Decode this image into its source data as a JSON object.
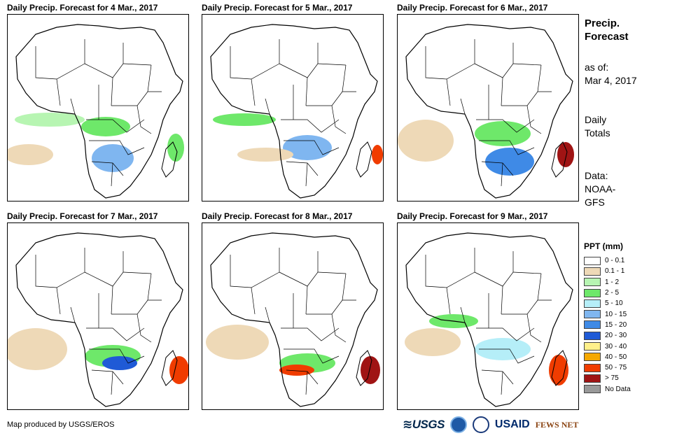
{
  "panels": [
    {
      "title": "Daily Precip. Forecast for 4 Mar., 2017"
    },
    {
      "title": "Daily Precip. Forecast for 5 Mar., 2017"
    },
    {
      "title": "Daily Precip. Forecast for 6 Mar., 2017"
    },
    {
      "title": "Daily Precip. Forecast for 7 Mar., 2017"
    },
    {
      "title": "Daily Precip. Forecast for 8 Mar., 2017"
    },
    {
      "title": "Daily Precip. Forecast for 9 Mar., 2017"
    }
  ],
  "info": {
    "title_line1": "Precip.",
    "title_line2": "Forecast",
    "asof_label": "as of:",
    "asof_date": "Mar 4, 2017",
    "totals_line1": "Daily",
    "totals_line2": "Totals",
    "data_line1": "Data:",
    "data_line2": "NOAA-",
    "data_line3": "GFS"
  },
  "legend": {
    "title": "PPT (mm)",
    "items": [
      {
        "label": "0 - 0.1",
        "color": "#ffffff"
      },
      {
        "label": "0.1 - 1",
        "color": "#eed9b7"
      },
      {
        "label": "1 - 2",
        "color": "#b7f5b2"
      },
      {
        "label": "2 - 5",
        "color": "#6ee86a"
      },
      {
        "label": "5 - 10",
        "color": "#b5eef8"
      },
      {
        "label": "10 - 15",
        "color": "#7fb6f0"
      },
      {
        "label": "15 - 20",
        "color": "#3f8ae6"
      },
      {
        "label": "20 - 30",
        "color": "#1f5ad6"
      },
      {
        "label": "30 - 40",
        "color": "#fff08a"
      },
      {
        "label": "40 - 50",
        "color": "#f5a800"
      },
      {
        "label": "50 - 75",
        "color": "#f03c00"
      },
      {
        "label": "> 75",
        "color": "#a01414"
      },
      {
        "label": "No Data",
        "color": "#999999"
      }
    ]
  },
  "footer": {
    "credit": "Map produced by USGS/EROS",
    "logo_usgs": "≋USGS",
    "logo_usaid": "USAID",
    "logo_fews": "FEWS NET"
  }
}
